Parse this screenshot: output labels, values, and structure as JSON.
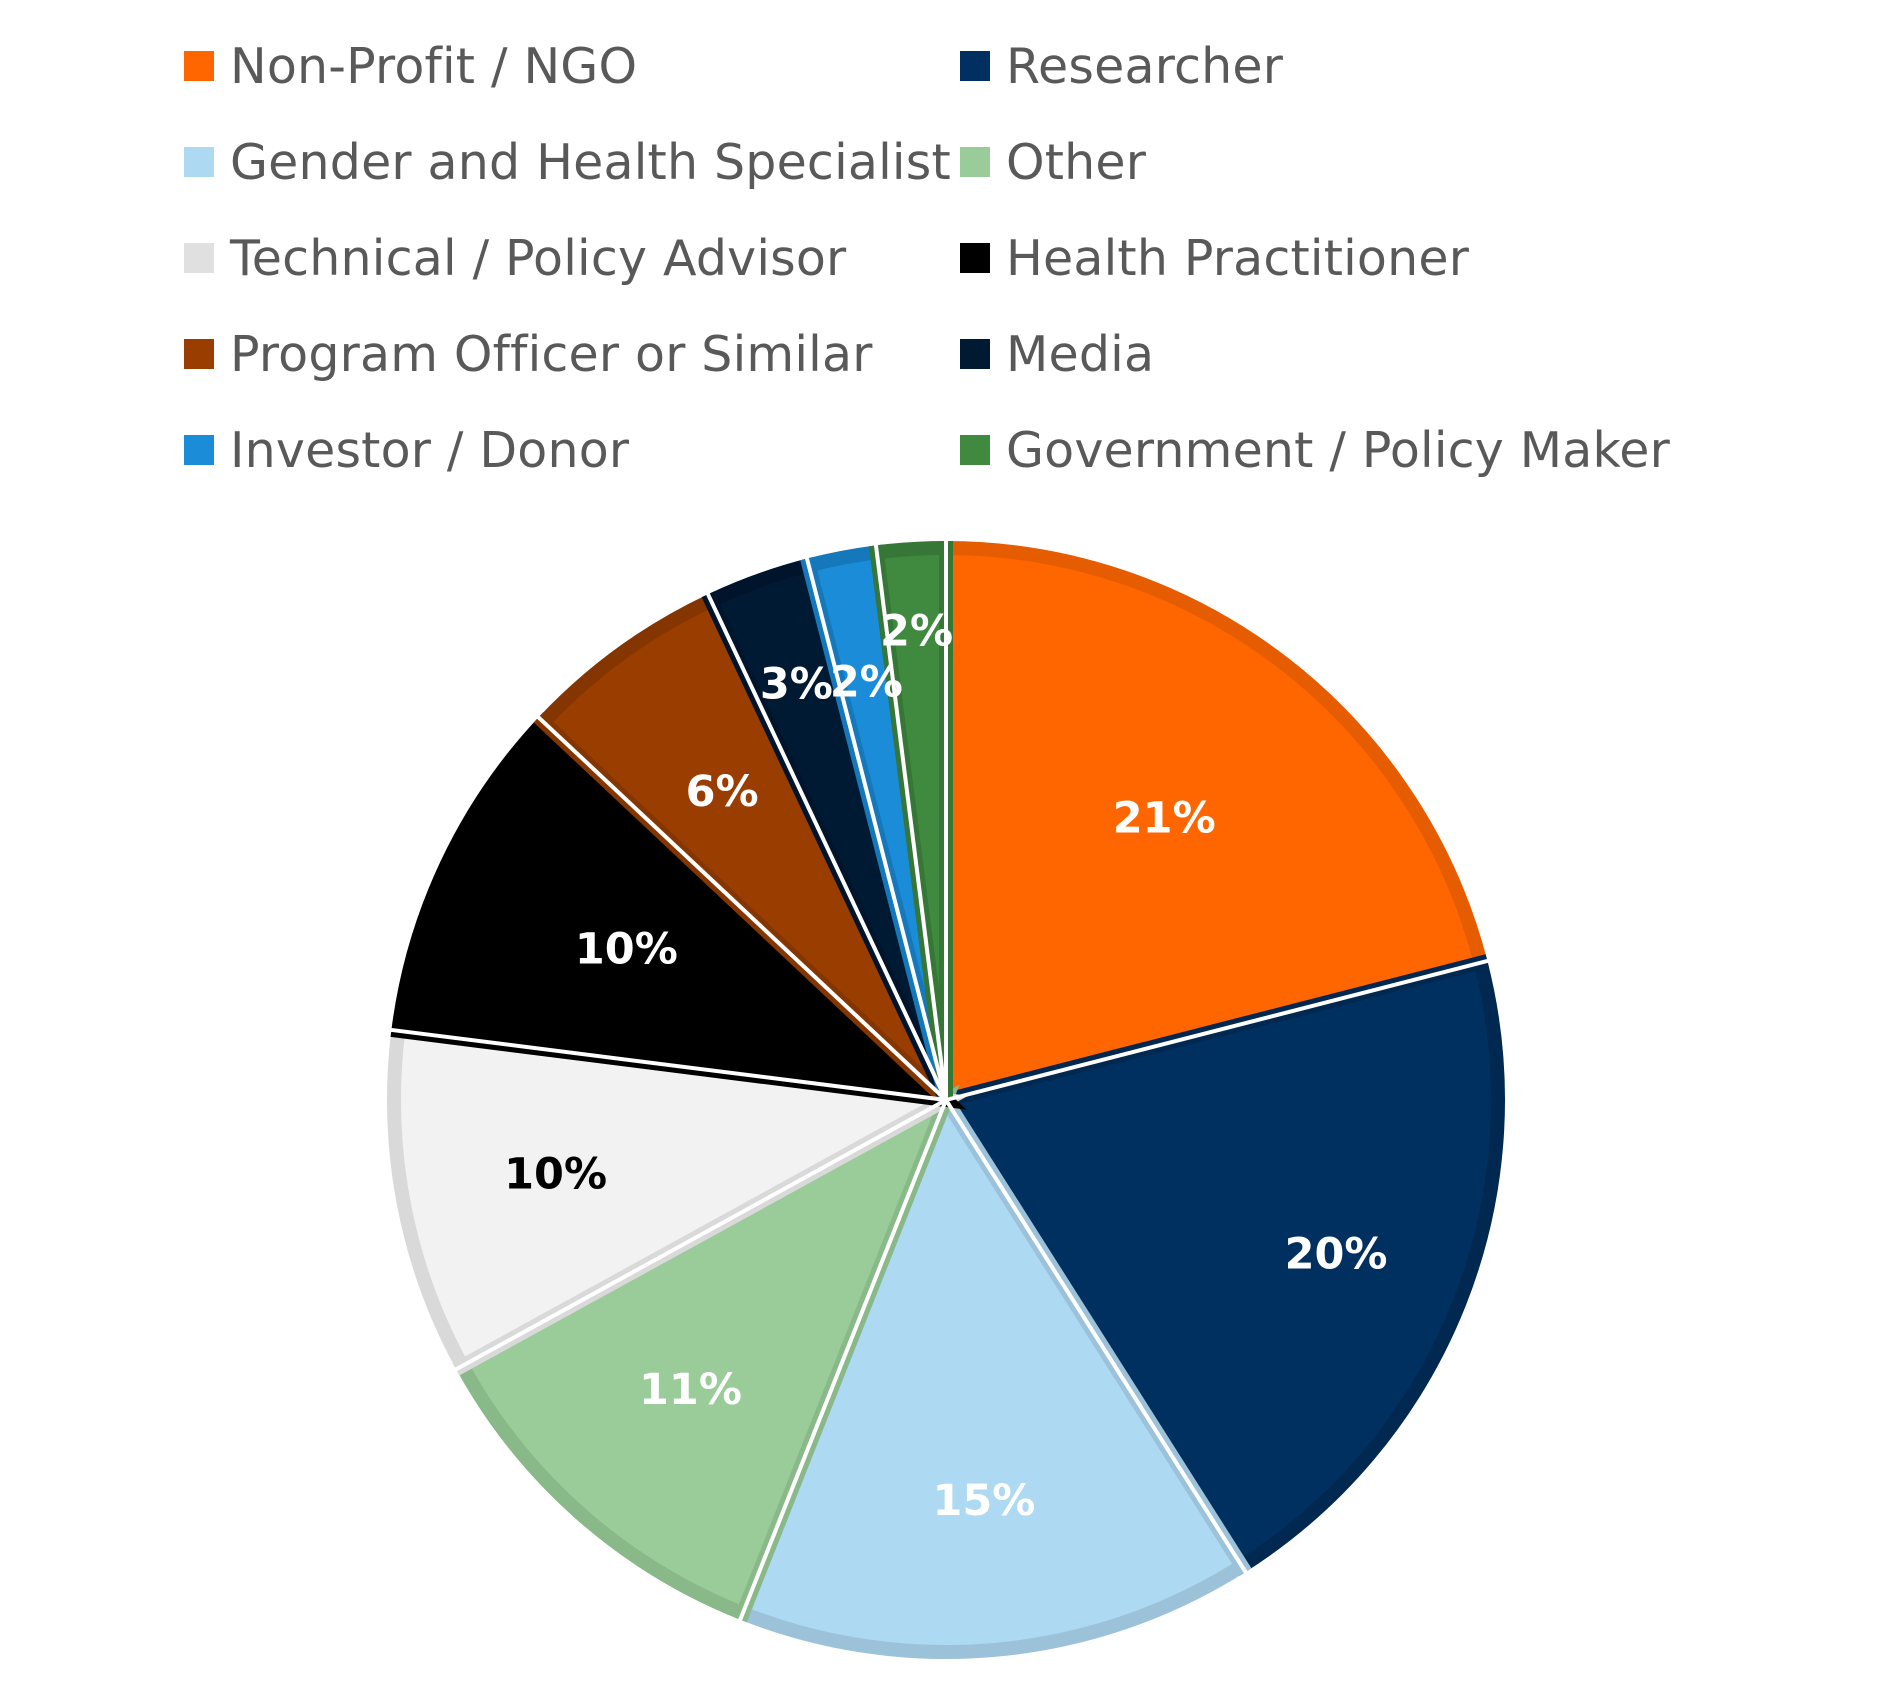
{
  "chart_data": {
    "type": "pie",
    "title": "",
    "legend_position": "top",
    "slices": [
      {
        "name": "Non-Profit / NGO",
        "value": 21,
        "label": "21%",
        "color": "#FF6600",
        "border": "#E65C00",
        "label_color": "#ffffff"
      },
      {
        "name": "Researcher",
        "value": 20,
        "label": "20%",
        "color": "#003060",
        "border": "#002850",
        "label_color": "#ffffff"
      },
      {
        "name": "Gender and Health Specialist",
        "value": 15,
        "label": "15%",
        "color": "#AED9F2",
        "border": "#9CC2DA",
        "label_color": "#ffffff"
      },
      {
        "name": "Other",
        "value": 11,
        "label": "11%",
        "color": "#99CC99",
        "border": "#89B889",
        "label_color": "#ffffff"
      },
      {
        "name": "Technical / Policy Advisor",
        "value": 10,
        "label": "10%",
        "color": "#F2F2F2",
        "border": "#D9D9D9",
        "label_color": "#000000"
      },
      {
        "name": "Health Practitioner",
        "value": 10,
        "label": "10%",
        "color": "#000000",
        "border": "#000000",
        "label_color": "#ffffff"
      },
      {
        "name": "Program Officer or Similar",
        "value": 6,
        "label": "6%",
        "color": "#993D00",
        "border": "#843500",
        "label_color": "#ffffff"
      },
      {
        "name": "Media",
        "value": 3,
        "label": "3%",
        "color": "#001A33",
        "border": "#00152B",
        "label_color": "#ffffff"
      },
      {
        "name": "Investor / Donor",
        "value": 2,
        "label": "2%",
        "color": "#1A8CD8",
        "border": "#1578BA",
        "label_color": "#ffffff"
      },
      {
        "name": "Government / Policy Maker",
        "value": 2,
        "label": "2%",
        "color": "#3F8A3F",
        "border": "#367636",
        "label_color": "#ffffff"
      }
    ]
  },
  "legend": {
    "items": [
      {
        "name": "Non-Profit / NGO",
        "color": "#FF6600"
      },
      {
        "name": "Researcher",
        "color": "#003060"
      },
      {
        "name": "Gender and Health Specialist",
        "color": "#AED9F2"
      },
      {
        "name": "Other",
        "color": "#99CC99"
      },
      {
        "name": "Technical / Policy Advisor",
        "color": "#E0E0E0"
      },
      {
        "name": "Health Practitioner",
        "color": "#000000"
      },
      {
        "name": "Program Officer or Similar",
        "color": "#993D00"
      },
      {
        "name": "Media",
        "color": "#001A33"
      },
      {
        "name": "Investor / Donor",
        "color": "#1A8CD8"
      },
      {
        "name": "Government / Policy Maker",
        "color": "#3F8A3F"
      }
    ]
  }
}
